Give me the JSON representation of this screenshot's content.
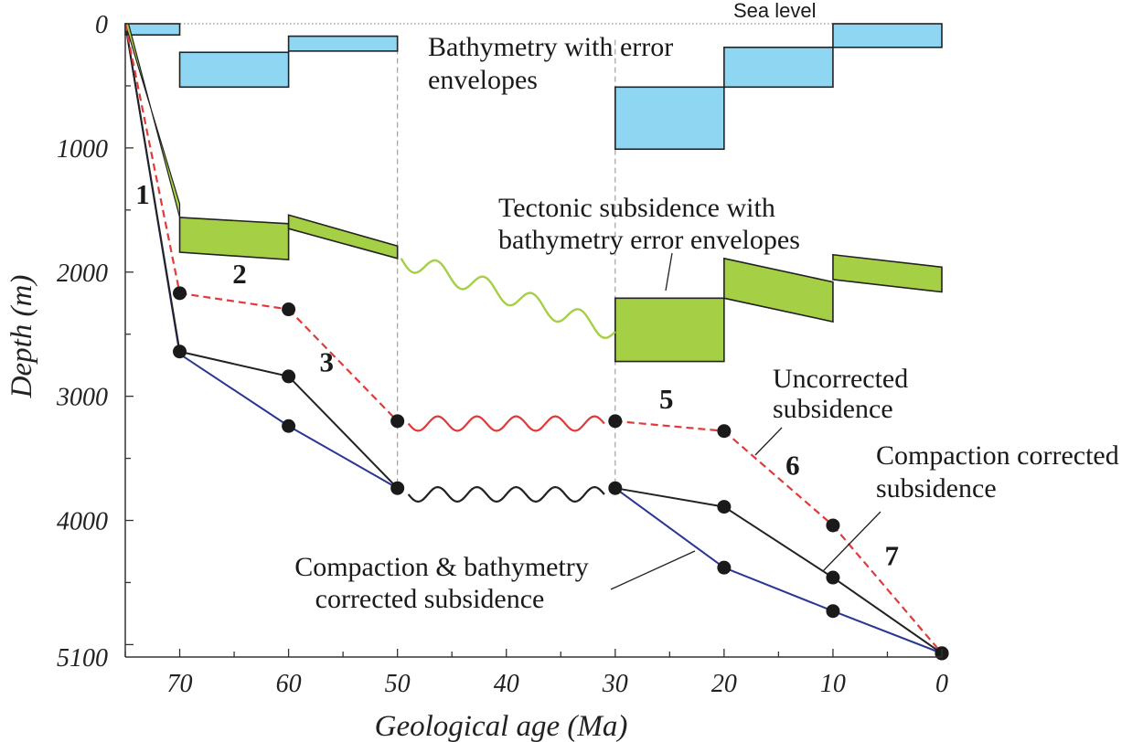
{
  "chart_data": {
    "type": "line",
    "xlabel": "Geological age (Ma)",
    "ylabel": "Depth (m)",
    "x_ticks": [
      70,
      60,
      50,
      40,
      30,
      20,
      10,
      0
    ],
    "y_ticks": [
      0,
      1000,
      2000,
      3000,
      4000,
      5100
    ],
    "xlim": [
      75,
      0
    ],
    "ylim": [
      0,
      5100
    ],
    "sea_level_label": "Sea level",
    "colors": {
      "bathymetry": "#8fd6f2",
      "tectonic": "#a5cf45",
      "uncorrected": "#e03a3a",
      "compaction": "#222222",
      "comp_bathy": "#2b3592"
    },
    "series": [
      {
        "name": "Uncorrected subsidence",
        "points": [
          [
            75,
            0
          ],
          [
            70,
            2170
          ],
          [
            60,
            2300
          ],
          [
            50,
            3200
          ],
          [
            30,
            3200
          ],
          [
            20,
            3280
          ],
          [
            10,
            4040
          ],
          [
            0,
            5070
          ]
        ]
      },
      {
        "name": "Compaction corrected subsidence",
        "points": [
          [
            75,
            0
          ],
          [
            70,
            2640
          ],
          [
            60,
            2840
          ],
          [
            50,
            3740
          ],
          [
            30,
            3740
          ],
          [
            20,
            3890
          ],
          [
            10,
            4460
          ],
          [
            0,
            5070
          ]
        ]
      },
      {
        "name": "Compaction & bathymetry corrected subsidence",
        "points": [
          [
            75,
            0
          ],
          [
            70,
            2660
          ],
          [
            60,
            3240
          ],
          [
            50,
            3740
          ],
          [
            30,
            3740
          ],
          [
            20,
            4380
          ],
          [
            10,
            4730
          ],
          [
            0,
            5070
          ]
        ]
      }
    ],
    "hiatus_waves": [
      {
        "series": "Uncorrected subsidence",
        "from": 49,
        "to": 31,
        "depth": 3220
      },
      {
        "series": "Compaction corrected subsidence",
        "from": 49,
        "to": 31,
        "depth": 3790
      }
    ],
    "bathymetry_boxes": [
      {
        "from": 75,
        "to": 70,
        "top": 0,
        "bottom": 90
      },
      {
        "from": 70,
        "to": 60,
        "top": 230,
        "bottom": 510
      },
      {
        "from": 60,
        "to": 50,
        "top": 100,
        "bottom": 220
      },
      {
        "from": 30,
        "to": 20,
        "top": 510,
        "bottom": 1010
      },
      {
        "from": 20,
        "to": 10,
        "top": 190,
        "bottom": 510
      },
      {
        "from": 10,
        "to": 0,
        "top": 0,
        "bottom": 190
      }
    ],
    "tectonic_envelopes": [
      {
        "from": 70,
        "to": 60,
        "top_start": 1560,
        "top_end": 1610,
        "bottom_start": 1840,
        "bottom_end": 1900
      },
      {
        "from": 60,
        "to": 50,
        "top_start": 1540,
        "top_end": 1790,
        "bottom_start": 1650,
        "bottom_end": 1890
      },
      {
        "from": 30,
        "to": 20,
        "top_start": 2210,
        "top_end": 2210,
        "bottom_start": 2720,
        "bottom_end": 2720
      },
      {
        "from": 20,
        "to": 10,
        "top_start": 1890,
        "top_end": 2080,
        "bottom_start": 2210,
        "bottom_end": 2400
      },
      {
        "from": 10,
        "to": 0,
        "top_start": 1860,
        "top_end": 1960,
        "bottom_start": 2060,
        "bottom_end": 2160
      }
    ],
    "tectonic_wave": {
      "from": 50,
      "to": 30,
      "depth_start": 1890,
      "depth_end": 2480
    },
    "annotations": {
      "bathymetry_label": [
        "Bathymetry with error",
        "envelopes"
      ],
      "tectonic_label": [
        "Tectonic subsidence with",
        "bathymetry error envelopes"
      ],
      "uncorrected_label": [
        "Uncorrected",
        "subsidence"
      ],
      "compaction_label": [
        "Compaction corrected",
        "subsidence"
      ],
      "comp_bathy_label": [
        "Compaction & bathymetry",
        "corrected subsidence"
      ]
    },
    "stage_labels": [
      {
        "text": "1",
        "x": 73.4,
        "depth": 1450
      },
      {
        "text": "2",
        "x": 64.5,
        "depth": 2090
      },
      {
        "text": "3",
        "x": 56.5,
        "depth": 2800
      },
      {
        "text": "5",
        "x": 25.3,
        "depth": 3100
      },
      {
        "text": "6",
        "x": 13.7,
        "depth": 3630
      },
      {
        "text": "7",
        "x": 4.6,
        "depth": 4360
      }
    ]
  }
}
